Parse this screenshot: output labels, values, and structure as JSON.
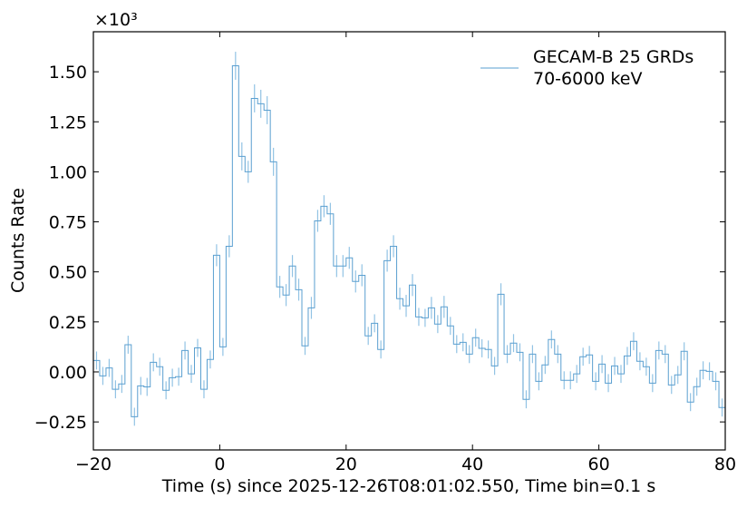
{
  "chart_data": {
    "type": "line",
    "style": "step-histogram-with-errorbars",
    "title": "",
    "xlabel": "Time (s) since 2025-12-26T08:01:02.550, Time bin=0.1 s",
    "ylabel": "Counts Rate",
    "y_offset_text": "×10³",
    "xlim": [
      -20,
      80
    ],
    "ylim": [
      -0.39,
      1.7
    ],
    "xticks": [
      -20,
      0,
      20,
      40,
      60,
      80
    ],
    "xtick_labels": [
      "−20",
      "0",
      "20",
      "40",
      "60",
      "80"
    ],
    "yticks": [
      -0.25,
      0,
      0.25,
      0.5,
      0.75,
      1.0,
      1.25,
      1.5
    ],
    "ytick_labels": [
      "−0.25",
      "0.00",
      "0.25",
      "0.50",
      "0.75",
      "1.00",
      "1.25",
      "1.50"
    ],
    "grid": false,
    "legend": {
      "position": "top-right",
      "entries": [
        "GECAM-B 25 GRDs",
        "70-6000 keV"
      ]
    },
    "color": "#5a9fd0",
    "errorbar_color": "#92c3e4",
    "bin_start": -20,
    "bin_width": 1,
    "values": [
      0.057,
      -0.02,
      0.02,
      -0.087,
      -0.06,
      0.136,
      -0.224,
      -0.07,
      -0.075,
      0.048,
      0.026,
      -0.092,
      -0.029,
      -0.024,
      0.107,
      -0.01,
      0.12,
      -0.087,
      0.062,
      0.583,
      0.125,
      0.628,
      1.53,
      1.077,
      1.0,
      1.367,
      1.34,
      1.308,
      1.05,
      0.425,
      0.384,
      0.529,
      0.411,
      0.13,
      0.32,
      0.755,
      0.828,
      0.79,
      0.529,
      0.529,
      0.57,
      0.452,
      0.483,
      0.18,
      0.243,
      0.112,
      0.556,
      0.628,
      0.366,
      0.33,
      0.434,
      0.275,
      0.27,
      0.32,
      0.239,
      0.325,
      0.23,
      0.139,
      0.148,
      0.089,
      0.171,
      0.118,
      0.112,
      0.03,
      0.388,
      0.089,
      0.144,
      0.098,
      -0.137,
      0.089,
      -0.047,
      0.035,
      0.162,
      0.089,
      -0.042,
      -0.042,
      -0.01,
      0.076,
      0.085,
      -0.047,
      0.039,
      -0.056,
      0.03,
      -0.01,
      0.08,
      0.153,
      0.053,
      0.026,
      -0.056,
      0.107,
      0.089,
      -0.065,
      -0.015,
      0.103,
      -0.151,
      -0.074,
      0.008,
      0.003,
      -0.047,
      -0.178
    ],
    "yerr_low": 0.045,
    "yerr_mid": 0.055,
    "yerr_high": 0.07
  }
}
